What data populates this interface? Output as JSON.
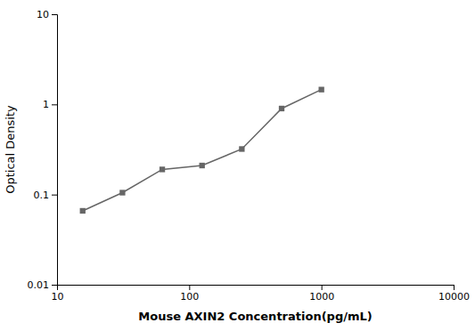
{
  "chart_data": {
    "type": "line",
    "x": [
      15.625,
      31.25,
      62.5,
      125,
      250,
      500,
      1000
    ],
    "values": [
      0.066,
      0.105,
      0.19,
      0.21,
      0.32,
      0.9,
      1.46
    ],
    "xlabel": "Mouse AXIN2 Concentration(pg/mL)",
    "ylabel": "Optical Density",
    "xlim": [
      10,
      10000
    ],
    "ylim": [
      0.01,
      10
    ],
    "xticks": [
      10,
      100,
      1000,
      10000
    ],
    "yticks": [
      0.01,
      0.1,
      1,
      10
    ],
    "log": true,
    "grid": false,
    "color": "#666666",
    "marker": "square"
  }
}
